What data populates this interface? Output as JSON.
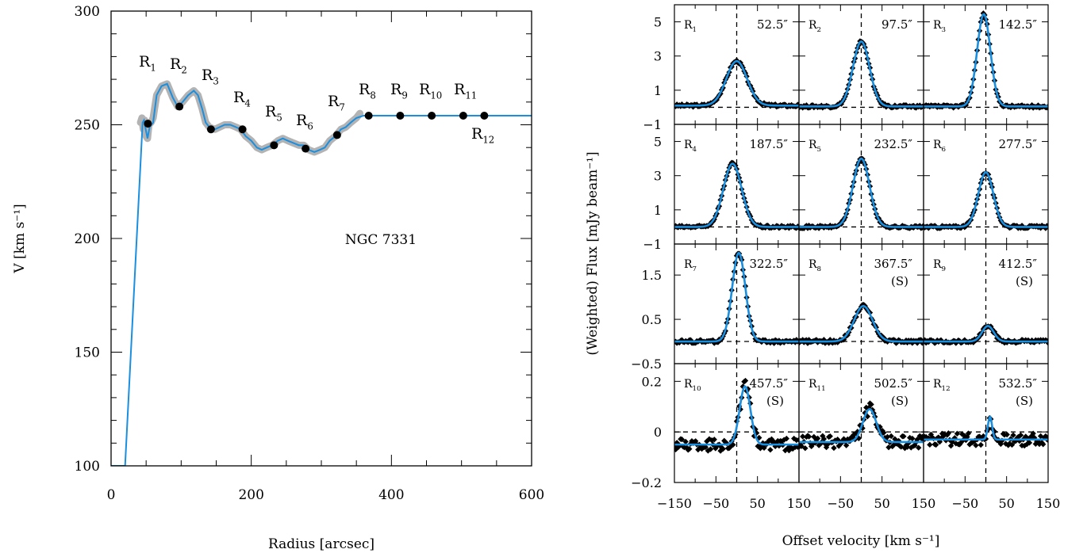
{
  "chart_data": [
    {
      "type": "line",
      "title": "",
      "annotation": "NGC 7331",
      "xlabel": "Radius [arcsec]",
      "ylabel": "V [km s⁻¹]",
      "xlim": [
        0,
        600
      ],
      "ylim": [
        100,
        300
      ],
      "xticks": [
        "0",
        "200",
        "400",
        "600"
      ],
      "yticks": [
        "100",
        "150",
        "200",
        "250",
        "300"
      ],
      "grid": false,
      "colors": {
        "model": "#1a8fe0",
        "data": "#b3b3b3",
        "points": "#000000"
      },
      "series": [
        {
          "x": [
            0,
            20,
            45,
            47,
            50,
            52,
            55,
            60,
            65,
            72,
            80,
            88,
            95,
            102,
            110,
            118,
            124,
            130,
            135,
            140,
            148,
            155,
            162,
            170,
            178,
            185,
            192,
            200,
            208,
            215,
            222,
            230,
            238,
            245,
            252,
            260,
            268,
            275,
            282,
            290,
            298,
            305,
            312,
            320,
            328,
            335,
            342,
            350,
            360,
            380,
            400,
            450,
            500,
            550,
            600
          ],
          "y": [
            100,
            100,
            251,
            252,
            247,
            244,
            249,
            251,
            263,
            267,
            268,
            262,
            258,
            260,
            263,
            265,
            263,
            257,
            251,
            249,
            248,
            249,
            250,
            250,
            249,
            248,
            245,
            243,
            240,
            239,
            240,
            241,
            243,
            244,
            243,
            242,
            241,
            241,
            239,
            238,
            239,
            240,
            243,
            245,
            248,
            249,
            251,
            253,
            254,
            254,
            254,
            254,
            254,
            254,
            254
          ]
        },
        {
          "x": [
            42,
            44,
            46,
            48,
            50,
            52,
            54,
            57,
            60,
            65,
            72,
            80,
            88,
            95,
            102,
            110,
            118,
            124,
            130,
            135,
            140,
            148,
            155,
            162,
            170,
            178,
            185,
            192,
            200,
            208,
            215,
            222,
            230,
            238,
            245,
            252,
            260,
            268,
            275,
            282,
            290,
            298,
            305,
            312,
            320,
            328,
            335,
            342,
            350,
            355
          ],
          "y": [
            251,
            253,
            248,
            252,
            245,
            244,
            250,
            251,
            253,
            263,
            267,
            268,
            262,
            258,
            260,
            263,
            265,
            263,
            257,
            251,
            249,
            248,
            249,
            250,
            250,
            249,
            248,
            245,
            243,
            240,
            239,
            240,
            241,
            243,
            244,
            243,
            242,
            241,
            241,
            239,
            238,
            239,
            240,
            243,
            245,
            248,
            249,
            251,
            253,
            255
          ]
        }
      ],
      "points": [
        {
          "label": "R1",
          "sub": "1",
          "x": 52.5,
          "y": 250.5
        },
        {
          "label": "R2",
          "sub": "2",
          "x": 97.5,
          "y": 258
        },
        {
          "label": "R3",
          "sub": "3",
          "x": 142.5,
          "y": 248
        },
        {
          "label": "R4",
          "sub": "4",
          "x": 187.5,
          "y": 248
        },
        {
          "label": "R5",
          "sub": "5",
          "x": 232.5,
          "y": 241
        },
        {
          "label": "R6",
          "sub": "6",
          "x": 277.5,
          "y": 239.5
        },
        {
          "label": "R7",
          "sub": "7",
          "x": 322.5,
          "y": 245.5
        },
        {
          "label": "R8",
          "sub": "8",
          "x": 367.5,
          "y": 254
        },
        {
          "label": "R9",
          "sub": "9",
          "x": 412.5,
          "y": 254
        },
        {
          "label": "R10",
          "sub": "10",
          "x": 457.5,
          "y": 254
        },
        {
          "label": "R11",
          "sub": "11",
          "x": 502.5,
          "y": 254
        },
        {
          "label": "R12",
          "sub": "12",
          "x": 532.5,
          "y": 254
        }
      ]
    },
    {
      "type": "line",
      "xlabel": "Offset velocity [km s⁻¹]",
      "ylabel": "(Weighted) Flux [mJy beam⁻¹]",
      "xlim": [
        -150,
        150
      ],
      "xticks": [
        "−150",
        "−50",
        "50",
        "150"
      ],
      "row_ylims": [
        [
          -1,
          6
        ],
        [
          -1,
          6
        ],
        [
          -0.5,
          2.2
        ],
        [
          -0.2,
          0.27
        ]
      ],
      "row_yticks": [
        [
          "−1",
          "1",
          "3",
          "5"
        ],
        [
          "−1",
          "1",
          "3",
          "5"
        ],
        [
          "−0.5",
          "0.5",
          "1.5"
        ],
        [
          "−0.2",
          "0",
          "0.2"
        ]
      ],
      "panels": [
        {
          "name": "R",
          "sub": "1",
          "radius": "52.5″",
          "note": "",
          "center": 0,
          "amp": 2.6,
          "sigma": 25,
          "base": 0.1,
          "noise": 0.08
        },
        {
          "name": "R",
          "sub": "2",
          "radius": "97.5″",
          "note": "",
          "center": 0,
          "amp": 3.8,
          "sigma": 20,
          "base": 0.05,
          "noise": 0.08
        },
        {
          "name": "R",
          "sub": "3",
          "radius": "142.5″",
          "note": "",
          "center": -5,
          "amp": 5.4,
          "sigma": 16,
          "base": 0.05,
          "noise": 0.08
        },
        {
          "name": "R",
          "sub": "4",
          "radius": "187.5″",
          "note": "",
          "center": -10,
          "amp": 3.7,
          "sigma": 22,
          "base": 0.0,
          "noise": 0.08
        },
        {
          "name": "R",
          "sub": "5",
          "radius": "232.5″",
          "note": "",
          "center": 0,
          "amp": 4.0,
          "sigma": 20,
          "base": 0.0,
          "noise": 0.08
        },
        {
          "name": "R",
          "sub": "6",
          "radius": "277.5″",
          "note": "",
          "center": 0,
          "amp": 3.2,
          "sigma": 18,
          "base": 0.0,
          "noise": 0.08
        },
        {
          "name": "R",
          "sub": "7",
          "radius": "322.5″",
          "note": "",
          "center": 5,
          "amp": 2.0,
          "sigma": 16,
          "base": 0.0,
          "noise": 0.04
        },
        {
          "name": "R",
          "sub": "8",
          "radius": "367.5″",
          "note": "(S)",
          "center": 5,
          "amp": 0.8,
          "sigma": 22,
          "base": 0.0,
          "noise": 0.04
        },
        {
          "name": "R",
          "sub": "9",
          "radius": "412.5″",
          "note": "(S)",
          "center": 5,
          "amp": 0.35,
          "sigma": 14,
          "base": 0.0,
          "noise": 0.04
        },
        {
          "name": "R",
          "sub": "10",
          "radius": "457.5″",
          "note": "(S)",
          "center": 20,
          "amp": 0.23,
          "sigma": 13,
          "base": -0.05,
          "noise": 0.025
        },
        {
          "name": "R",
          "sub": "11",
          "radius": "502.5″",
          "note": "(S)",
          "center": 20,
          "amp": 0.13,
          "sigma": 16,
          "base": -0.04,
          "noise": 0.025
        },
        {
          "name": "R",
          "sub": "12",
          "radius": "532.5″",
          "note": "(S)",
          "center": 10,
          "amp": 0.09,
          "sigma": 5,
          "base": -0.03,
          "noise": 0.025
        }
      ]
    }
  ]
}
